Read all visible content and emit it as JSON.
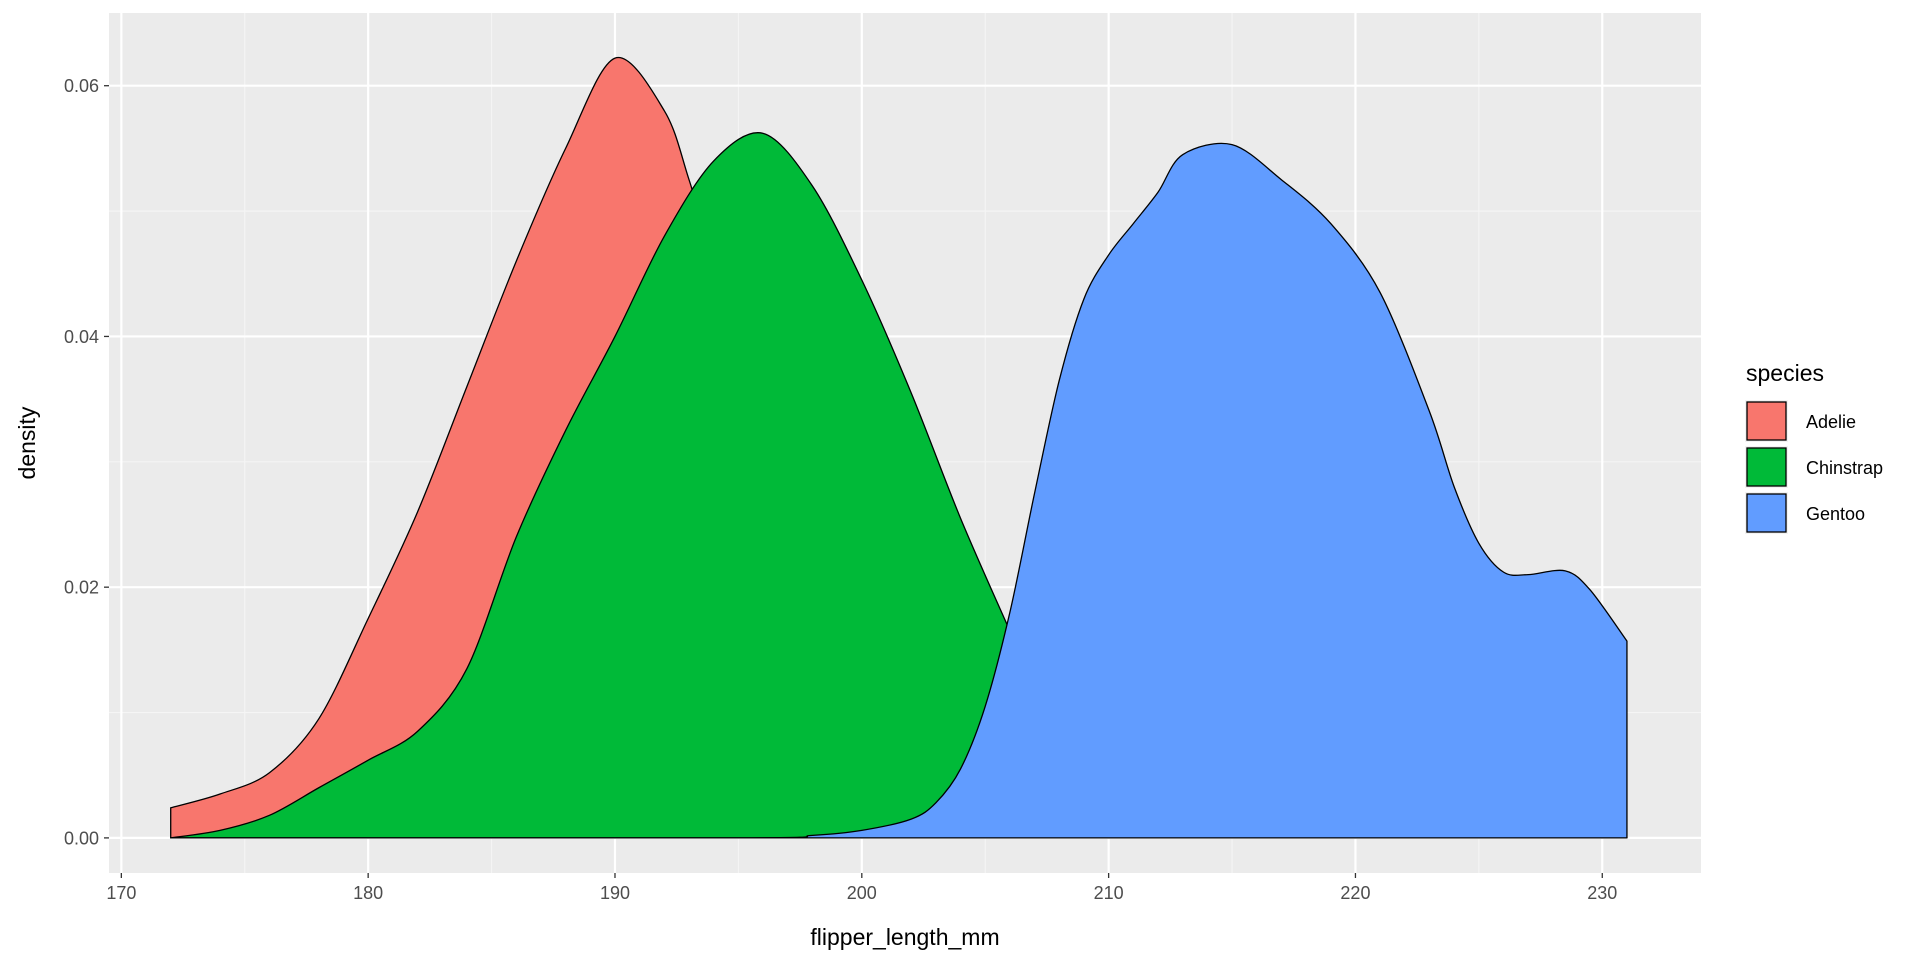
{
  "chart_data": {
    "type": "area",
    "subtype": "density",
    "xlabel": "flipper_length_mm",
    "ylabel": "density",
    "xlim": [
      169.5,
      234
    ],
    "ylim": [
      -0.0028,
      0.0658
    ],
    "x_ticks": [
      170,
      180,
      190,
      200,
      210,
      220,
      230
    ],
    "x_tick_labels": [
      "170",
      "180",
      "190",
      "200",
      "210",
      "220",
      "230"
    ],
    "y_ticks": [
      0,
      0.02,
      0.04,
      0.06
    ],
    "y_tick_labels": [
      "0.00",
      "0.02",
      "0.04",
      "0.06"
    ],
    "grid": true,
    "legend": {
      "title": "species",
      "placement": "right"
    },
    "series": [
      {
        "name": "Adelie",
        "color": "#F8766D",
        "x": [
          172,
          174,
          176,
          178,
          180,
          182,
          184,
          186,
          188,
          190,
          192,
          193,
          194,
          196,
          198,
          200,
          202,
          204,
          205,
          206,
          208,
          210,
          215,
          220,
          225,
          231
        ],
        "y": [
          0.0024,
          0.0035,
          0.0052,
          0.0095,
          0.0175,
          0.026,
          0.036,
          0.046,
          0.055,
          0.0622,
          0.058,
          0.0525,
          0.046,
          0.035,
          0.024,
          0.0145,
          0.0075,
          0.0035,
          0.002,
          0.001,
          0.0002,
          0,
          0,
          0,
          0,
          0
        ]
      },
      {
        "name": "Chinstrap",
        "color": "#00BA38",
        "x": [
          172,
          174,
          176,
          178,
          180,
          182,
          184,
          186,
          188,
          190,
          192,
          194,
          196,
          198,
          200,
          202,
          204,
          206,
          207,
          208,
          210,
          215,
          220,
          231
        ],
        "y": [
          0,
          0.0006,
          0.0018,
          0.004,
          0.0062,
          0.0085,
          0.0135,
          0.024,
          0.0325,
          0.04,
          0.048,
          0.054,
          0.0562,
          0.052,
          0.0445,
          0.0355,
          0.0255,
          0.0165,
          0.012,
          0.0075,
          0.0015,
          0,
          0,
          0
        ]
      },
      {
        "name": "Gentoo",
        "color": "#619CFF",
        "x": [
          172,
          195,
          198,
          200,
          202,
          203,
          204,
          205,
          206,
          207,
          208,
          209,
          210,
          211,
          212,
          213,
          215,
          217,
          219,
          221,
          223,
          224,
          225,
          226,
          227,
          228.5,
          229.5,
          231
        ],
        "y": [
          0,
          0,
          0.0002,
          0.0006,
          0.0015,
          0.0028,
          0.0055,
          0.0105,
          0.018,
          0.0275,
          0.0365,
          0.043,
          0.0465,
          0.049,
          0.0515,
          0.0545,
          0.0553,
          0.0525,
          0.049,
          0.0435,
          0.034,
          0.028,
          0.0235,
          0.0212,
          0.021,
          0.0213,
          0.0198,
          0.0157
        ]
      }
    ]
  }
}
